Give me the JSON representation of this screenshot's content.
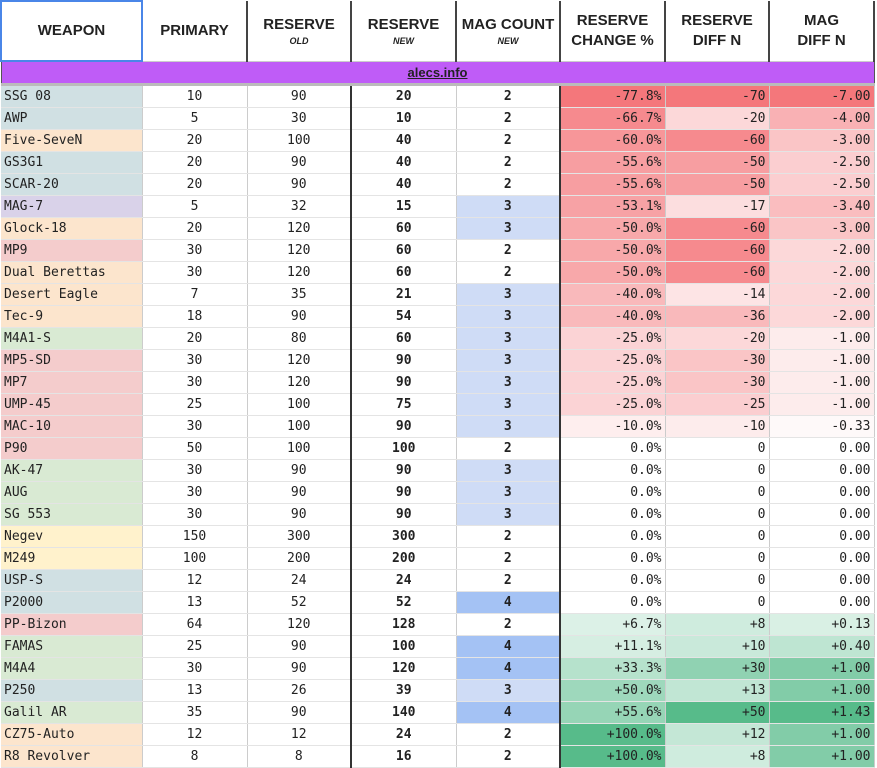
{
  "headers": {
    "weapon": "WEAPON",
    "primary": "PRIMARY",
    "reserve_old": "RESERVE",
    "reserve_old_sub": "OLD",
    "reserve_new": "RESERVE",
    "reserve_new_sub": "NEW",
    "mag_count": "MAG COUNT",
    "mag_count_sub": "NEW",
    "reserve_change_1": "RESERVE",
    "reserve_change_2": "CHANGE %",
    "reserve_diff_1": "RESERVE",
    "reserve_diff_2": "DIFF N",
    "mag_diff_1": "MAG",
    "mag_diff_2": "DIFF N"
  },
  "banner": "alecs.info",
  "colors": {
    "sniper": "#d0e0e3",
    "pistol": "#fce5cd",
    "shotgun": "#d9d2e9",
    "smg": "#f4cccc",
    "rifle": "#d9ead3",
    "heavy": "#fff2cc",
    "mag3": "#cfdcf6",
    "mag4": "#a4c2f4",
    "neg": "#f4777b",
    "pos": "#57bb8a"
  },
  "rows": [
    [
      "SSG 08",
      "sniper",
      10,
      90,
      20,
      2,
      "-77.8%",
      "-70",
      "-7.00"
    ],
    [
      "AWP",
      "sniper",
      5,
      30,
      10,
      2,
      "-66.7%",
      "-20",
      "-4.00"
    ],
    [
      "Five-SeveN",
      "pistol",
      20,
      100,
      40,
      2,
      "-60.0%",
      "-60",
      "-3.00"
    ],
    [
      "GS3G1",
      "sniper",
      20,
      90,
      40,
      2,
      "-55.6%",
      "-50",
      "-2.50"
    ],
    [
      "SCAR-20",
      "sniper",
      20,
      90,
      40,
      2,
      "-55.6%",
      "-50",
      "-2.50"
    ],
    [
      "MAG-7",
      "shotgun",
      5,
      32,
      15,
      3,
      "-53.1%",
      "-17",
      "-3.40"
    ],
    [
      "Glock-18",
      "pistol",
      20,
      120,
      60,
      3,
      "-50.0%",
      "-60",
      "-3.00"
    ],
    [
      "MP9",
      "smg",
      30,
      120,
      60,
      2,
      "-50.0%",
      "-60",
      "-2.00"
    ],
    [
      "Dual Berettas",
      "pistol",
      30,
      120,
      60,
      2,
      "-50.0%",
      "-60",
      "-2.00"
    ],
    [
      "Desert Eagle",
      "pistol",
      7,
      35,
      21,
      3,
      "-40.0%",
      "-14",
      "-2.00"
    ],
    [
      "Tec-9",
      "pistol",
      18,
      90,
      54,
      3,
      "-40.0%",
      "-36",
      "-2.00"
    ],
    [
      "M4A1-S",
      "rifle",
      20,
      80,
      60,
      3,
      "-25.0%",
      "-20",
      "-1.00"
    ],
    [
      "MP5-SD",
      "smg",
      30,
      120,
      90,
      3,
      "-25.0%",
      "-30",
      "-1.00"
    ],
    [
      "MP7",
      "smg",
      30,
      120,
      90,
      3,
      "-25.0%",
      "-30",
      "-1.00"
    ],
    [
      "UMP-45",
      "smg",
      25,
      100,
      75,
      3,
      "-25.0%",
      "-25",
      "-1.00"
    ],
    [
      "MAC-10",
      "smg",
      30,
      100,
      90,
      3,
      "-10.0%",
      "-10",
      "-0.33"
    ],
    [
      "P90",
      "smg",
      50,
      100,
      100,
      2,
      "0.0%",
      "0",
      "0.00"
    ],
    [
      "AK-47",
      "rifle",
      30,
      90,
      90,
      3,
      "0.0%",
      "0",
      "0.00"
    ],
    [
      "AUG",
      "rifle",
      30,
      90,
      90,
      3,
      "0.0%",
      "0",
      "0.00"
    ],
    [
      "SG 553",
      "rifle",
      30,
      90,
      90,
      3,
      "0.0%",
      "0",
      "0.00"
    ],
    [
      "Negev",
      "heavy",
      150,
      300,
      300,
      2,
      "0.0%",
      "0",
      "0.00"
    ],
    [
      "M249",
      "heavy",
      100,
      200,
      200,
      2,
      "0.0%",
      "0",
      "0.00"
    ],
    [
      "USP-S",
      "sniper",
      12,
      24,
      24,
      2,
      "0.0%",
      "0",
      "0.00"
    ],
    [
      "P2000",
      "sniper",
      13,
      52,
      52,
      4,
      "0.0%",
      "0",
      "0.00"
    ],
    [
      "PP-Bizon",
      "smg",
      64,
      120,
      128,
      2,
      "+6.7%",
      "+8",
      "+0.13"
    ],
    [
      "FAMAS",
      "rifle",
      25,
      90,
      100,
      4,
      "+11.1%",
      "+10",
      "+0.40"
    ],
    [
      "M4A4",
      "rifle",
      30,
      90,
      120,
      4,
      "+33.3%",
      "+30",
      "+1.00"
    ],
    [
      "P250",
      "sniper",
      13,
      26,
      39,
      3,
      "+50.0%",
      "+13",
      "+1.00"
    ],
    [
      "Galil AR",
      "rifle",
      35,
      90,
      140,
      4,
      "+55.6%",
      "+50",
      "+1.43"
    ],
    [
      "CZ75-Auto",
      "pistol",
      12,
      12,
      24,
      2,
      "+100.0%",
      "+12",
      "+1.00"
    ],
    [
      "R8 Revolver",
      "pistol",
      8,
      8,
      16,
      2,
      "+100.0%",
      "+8",
      "+1.00"
    ]
  ]
}
